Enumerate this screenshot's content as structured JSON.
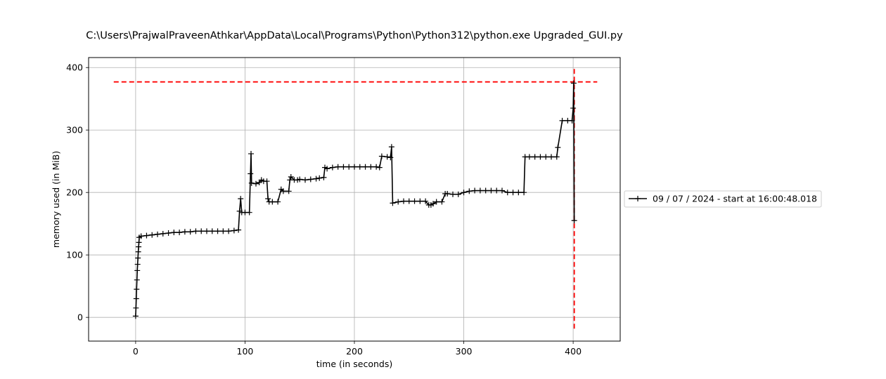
{
  "chart_data": {
    "type": "line",
    "title": "C:\\Users\\PrajwalPraveenAthkar\\AppData\\Local\\Programs\\Python\\Python312\\python.exe Upgraded_GUI.py",
    "xlabel": "time (in seconds)",
    "ylabel": "memory used (in MiB)",
    "xlim": [
      -43,
      443
    ],
    "ylim": [
      -38,
      416
    ],
    "xticks": [
      0,
      100,
      200,
      300,
      400
    ],
    "yticks": [
      0,
      100,
      200,
      300,
      400
    ],
    "grid": true,
    "legend_placement": "outside right",
    "series": [
      {
        "name": "09 / 07 / 2024 - start at 16:00:48.018",
        "color": "#000000",
        "marker": "+",
        "x": [
          0,
          0.3,
          0.6,
          0.9,
          1.2,
          1.5,
          1.8,
          2.1,
          2.4,
          2.7,
          3.0,
          3.3,
          5,
          10,
          15,
          20,
          25,
          30,
          35,
          40,
          45,
          50,
          55,
          60,
          65,
          70,
          75,
          80,
          85,
          90,
          94,
          95,
          96,
          97,
          100,
          104,
          105,
          105.5,
          106,
          110,
          113,
          115,
          117,
          120,
          121,
          122,
          125,
          130,
          133,
          135,
          140,
          141,
          142,
          145,
          148,
          150,
          155,
          160,
          165,
          168,
          172,
          173,
          175,
          180,
          185,
          190,
          195,
          200,
          205,
          210,
          215,
          220,
          223,
          225,
          230,
          233,
          234,
          235,
          240,
          245,
          250,
          255,
          260,
          265,
          268,
          270,
          272,
          275,
          280,
          283,
          285,
          290,
          295,
          300,
          305,
          310,
          315,
          320,
          325,
          330,
          335,
          340,
          345,
          350,
          355,
          356,
          360,
          365,
          370,
          375,
          380,
          385,
          386,
          390,
          395,
          399,
          400,
          400.5,
          401
        ],
        "y": [
          2,
          15,
          30,
          45,
          60,
          75,
          85,
          95,
          105,
          113,
          120,
          128,
          130,
          131,
          132,
          133,
          134,
          135,
          136,
          136,
          137,
          137,
          138,
          138,
          138,
          138,
          138,
          138,
          138,
          139,
          140,
          170,
          190,
          168,
          168,
          168,
          230,
          262,
          215,
          214,
          216,
          220,
          218,
          218,
          190,
          185,
          185,
          185,
          205,
          202,
          202,
          220,
          225,
          220,
          220,
          221,
          220,
          221,
          222,
          223,
          224,
          240,
          238,
          240,
          241,
          241,
          241,
          241,
          241,
          241,
          241,
          241,
          240,
          258,
          257,
          256,
          273,
          183,
          185,
          186,
          186,
          186,
          186,
          186,
          180,
          180,
          182,
          185,
          185,
          198,
          198,
          197,
          197,
          200,
          202,
          203,
          203,
          203,
          203,
          203,
          203,
          200,
          200,
          200,
          200,
          257,
          257,
          257,
          257,
          257,
          257,
          257,
          272,
          315,
          315,
          315,
          335,
          375,
          155
        ]
      }
    ],
    "reference_lines": [
      {
        "orientation": "horizontal",
        "value": 377,
        "from": -20,
        "to": 422,
        "color": "#ff0000",
        "style": "dashed"
      },
      {
        "orientation": "vertical",
        "value": 401,
        "from": -18,
        "to": 398,
        "color": "#ff0000",
        "style": "dashed"
      }
    ]
  }
}
